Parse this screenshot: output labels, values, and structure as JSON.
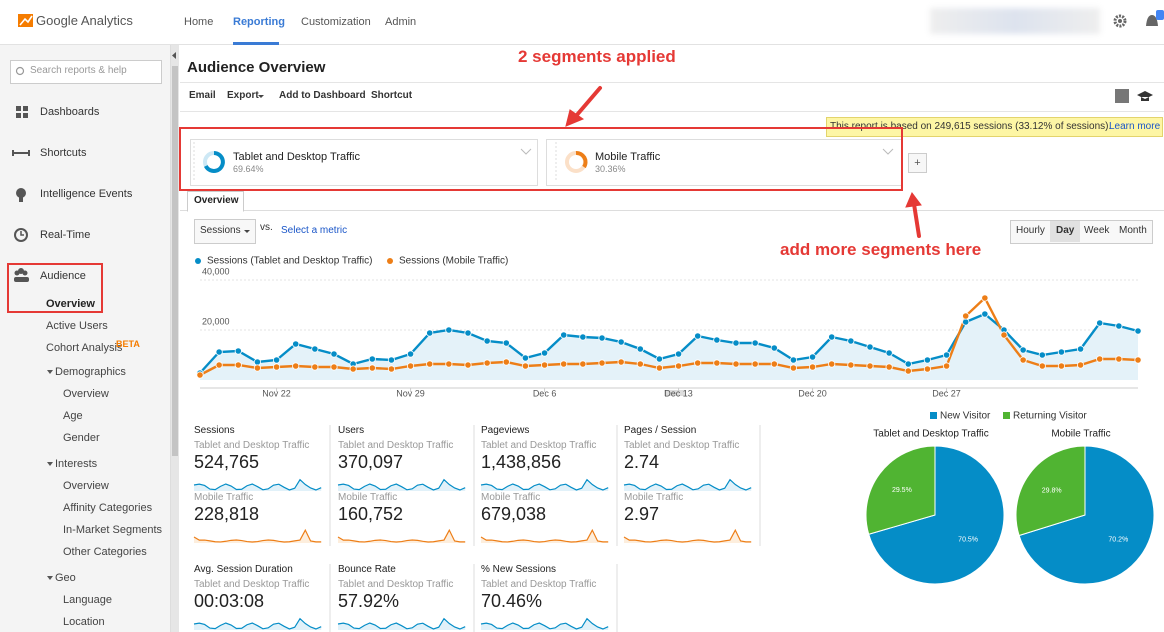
{
  "header": {
    "logo": "Google Analytics",
    "nav": [
      "Home",
      "Reporting",
      "Customization",
      "Admin"
    ]
  },
  "sidebar": {
    "search": "Search reports & help",
    "main": [
      "Dashboards",
      "Shortcuts",
      "Intelligence Events",
      "Real-Time",
      "Audience"
    ],
    "audience": [
      "Overview",
      "Active Users",
      "Cohort Analysis"
    ],
    "beta": "BETA",
    "groups": [
      {
        "title": "Demographics",
        "items": [
          "Overview",
          "Age",
          "Gender"
        ]
      },
      {
        "title": "Interests",
        "items": [
          "Overview",
          "Affinity Categories",
          "In-Market Segments",
          "Other Categories"
        ]
      },
      {
        "title": "Geo",
        "items": [
          "Language",
          "Location"
        ]
      }
    ]
  },
  "page": {
    "title": "Audience Overview",
    "toolbar": [
      "Email",
      "Export",
      "Add to Dashboard",
      "Shortcut"
    ],
    "notice": "This report is based on 249,615 sessions (33.12% of sessions).",
    "notice_link": "Learn more",
    "segments": [
      {
        "name": "Tablet and Desktop Traffic",
        "share": "69.64%"
      },
      {
        "name": "Mobile Traffic",
        "share": "30.36%"
      }
    ],
    "tab": "Overview",
    "metric_select": "Sessions",
    "vs": "vs.",
    "select_metric": "Select a metric",
    "granularity": [
      "Hourly",
      "Day",
      "Week",
      "Month"
    ]
  },
  "annotations": [
    "2 segments applied",
    "add more segments here"
  ],
  "metrics": [
    {
      "label": "Sessions",
      "values": [
        {
          "segment": "Tablet and Desktop Traffic",
          "value": "524,765"
        },
        {
          "segment": "Mobile Traffic",
          "value": "228,818"
        }
      ]
    },
    {
      "label": "Users",
      "values": [
        {
          "segment": "Tablet and Desktop Traffic",
          "value": "370,097"
        },
        {
          "segment": "Mobile Traffic",
          "value": "160,752"
        }
      ]
    },
    {
      "label": "Pageviews",
      "values": [
        {
          "segment": "Tablet and Desktop Traffic",
          "value": "1,438,856"
        },
        {
          "segment": "Mobile Traffic",
          "value": "679,038"
        }
      ]
    },
    {
      "label": "Pages / Session",
      "values": [
        {
          "segment": "Tablet and Desktop Traffic",
          "value": "2.74"
        },
        {
          "segment": "Mobile Traffic",
          "value": "2.97"
        }
      ]
    },
    {
      "label": "Avg. Session Duration",
      "values": [
        {
          "segment": "Tablet and Desktop Traffic",
          "value": "00:03:08"
        }
      ]
    },
    {
      "label": "Bounce Rate",
      "values": [
        {
          "segment": "Tablet and Desktop Traffic",
          "value": "57.92%"
        }
      ]
    },
    {
      "label": "% New Sessions",
      "values": [
        {
          "segment": "Tablet and Desktop Traffic",
          "value": "70.46%"
        }
      ]
    }
  ],
  "chart_data": [
    {
      "type": "line",
      "categories": [
        null,
        null,
        null,
        null,
        "Nov 22",
        null,
        null,
        null,
        null,
        null,
        null,
        "Nov 29",
        null,
        null,
        null,
        null,
        null,
        null,
        "Dec 6",
        null,
        null,
        null,
        null,
        null,
        null,
        "Dec 13",
        null,
        null,
        null,
        null,
        null,
        null,
        "Dec 20",
        null,
        null,
        null,
        null,
        null,
        null,
        "Dec 27",
        null,
        null,
        null,
        null,
        null,
        null,
        null,
        null,
        null,
        null
      ],
      "series": [
        {
          "name": "Sessions (Tablet and Desktop Traffic)",
          "color": "#058dc7",
          "values": [
            2800,
            11200,
            11600,
            7200,
            8000,
            14400,
            12400,
            10400,
            6400,
            8400,
            8000,
            10400,
            18800,
            20000,
            18800,
            15600,
            14800,
            8800,
            10800,
            18000,
            17200,
            16800,
            15200,
            12400,
            8400,
            10400,
            17600,
            16000,
            14800,
            14800,
            12800,
            8000,
            9200,
            17200,
            15600,
            13200,
            10800,
            6400,
            8000,
            10000,
            23200,
            26400,
            20000,
            12000,
            10000,
            11200,
            12400,
            22800,
            21600,
            19600
          ]
        },
        {
          "name": "Sessions (Mobile Traffic)",
          "color": "#ed7e17",
          "values": [
            2000,
            6000,
            6000,
            4800,
            5200,
            5600,
            5200,
            5200,
            4400,
            4800,
            4400,
            5600,
            6400,
            6400,
            6000,
            6800,
            7200,
            5600,
            6000,
            6400,
            6400,
            6800,
            7200,
            6400,
            4800,
            5600,
            6800,
            6800,
            6400,
            6400,
            6400,
            4800,
            5200,
            6400,
            6000,
            5600,
            5200,
            3600,
            4400,
            5600,
            25600,
            32800,
            18000,
            8000,
            5600,
            5600,
            6000,
            8400,
            8400,
            8000
          ]
        }
      ],
      "ylim": [
        0,
        40000
      ],
      "yticks": [
        {
          "value": 20000,
          "label": "20,000"
        },
        {
          "value": 40000,
          "label": "40,000"
        }
      ],
      "grid": true
    },
    {
      "type": "pie",
      "categories": [
        "New Visitor",
        "Returning Visitor"
      ],
      "colors": [
        "#058dc7",
        "#50b432"
      ],
      "series": [
        {
          "name": "Tablet and Desktop Traffic",
          "values": [
            70.5,
            29.5
          ],
          "value_labels": [
            "70.5%",
            "29.5%"
          ]
        },
        {
          "name": "Mobile Traffic",
          "values": [
            70.2,
            29.8
          ],
          "value_labels": [
            "70.2%",
            "29.8%"
          ]
        }
      ]
    }
  ]
}
